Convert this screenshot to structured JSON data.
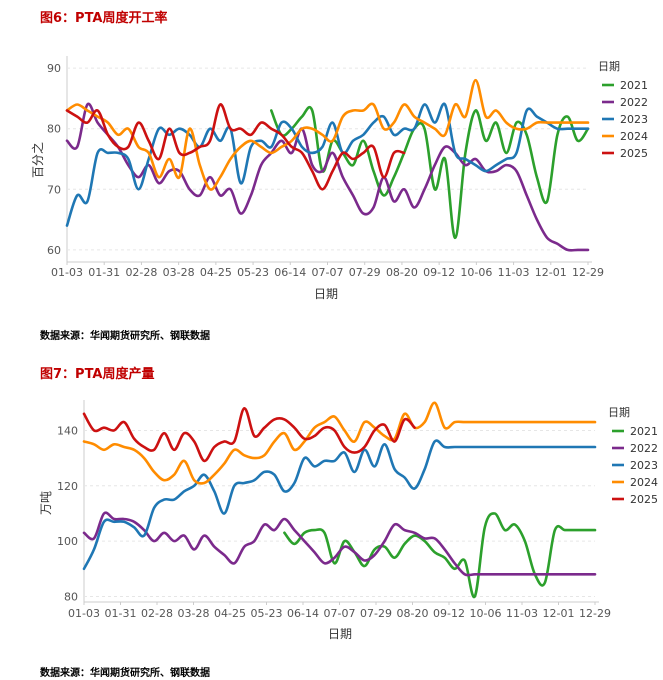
{
  "charts": [
    {
      "figure_title": "图6：PTA周度开工率",
      "source": "数据来源：华闻期货研究所、钢联数据"
    },
    {
      "figure_title": "图7：PTA周度产量",
      "source": "数据来源：华闻期货研究所、钢联数据"
    }
  ],
  "chart_data": [
    {
      "type": "line",
      "title": "图6：PTA周度开工率",
      "xlabel": "日期",
      "ylabel": "百分之",
      "ylim": [
        58,
        92
      ],
      "yticks": [
        60,
        70,
        80,
        90
      ],
      "categories": [
        "01-03",
        "01-31",
        "02-28",
        "03-28",
        "04-25",
        "05-23",
        "06-14",
        "07-07",
        "07-29",
        "08-20",
        "09-12",
        "10-06",
        "11-03",
        "12-01",
        "12-29"
      ],
      "legend_title": "日期",
      "series": [
        {
          "name": "2021",
          "color": "#2ca02c",
          "x": [
            20,
            21,
            22,
            23,
            24,
            25,
            26,
            27,
            28,
            29,
            30,
            31,
            32,
            33,
            34,
            35,
            36,
            37,
            38,
            39,
            40,
            41,
            42,
            43,
            44,
            45,
            46,
            47,
            48,
            49,
            50,
            51
          ],
          "values": [
            83,
            79,
            80,
            82,
            83,
            73,
            78,
            76,
            74,
            78,
            73,
            69,
            72,
            76,
            80,
            80,
            70,
            75,
            62,
            76,
            83,
            78,
            81,
            76,
            81,
            79,
            72,
            68,
            79,
            82,
            78,
            80
          ]
        },
        {
          "name": "2022",
          "color": "#7b2a8c",
          "x": [
            0,
            1,
            2,
            3,
            4,
            5,
            6,
            7,
            8,
            9,
            10,
            11,
            12,
            13,
            14,
            15,
            16,
            17,
            18,
            19,
            20,
            21,
            22,
            23,
            24,
            25,
            26,
            27,
            28,
            29,
            30,
            31,
            32,
            33,
            34,
            35,
            36,
            37,
            38,
            39,
            40,
            41,
            42,
            43,
            44,
            45,
            46,
            47,
            48,
            49,
            50,
            51
          ],
          "values": [
            78,
            77,
            84,
            81,
            79,
            77,
            74,
            72,
            74,
            71,
            73,
            73,
            70,
            69,
            72,
            69,
            70,
            66,
            69,
            74,
            76,
            78,
            76,
            80,
            74,
            73,
            76,
            72,
            69,
            66,
            67,
            72,
            68,
            70,
            67,
            70,
            74,
            77,
            76,
            74,
            75,
            73,
            73,
            74,
            73,
            69,
            65,
            62,
            61,
            60,
            60,
            60
          ]
        },
        {
          "name": "2023",
          "color": "#1f77b4",
          "x": [
            0,
            1,
            2,
            3,
            4,
            5,
            6,
            7,
            8,
            9,
            10,
            11,
            12,
            13,
            14,
            15,
            16,
            17,
            18,
            19,
            20,
            21,
            22,
            23,
            24,
            25,
            26,
            27,
            28,
            29,
            30,
            31,
            32,
            33,
            34,
            35,
            36,
            37,
            38,
            39,
            40,
            41,
            42,
            43,
            44,
            45,
            46,
            47,
            48,
            49,
            50,
            51
          ],
          "values": [
            64,
            69,
            68,
            76,
            76,
            76,
            75,
            70,
            75,
            80,
            79,
            80,
            79,
            77,
            80,
            78,
            80,
            71,
            77,
            78,
            77,
            81,
            80,
            77,
            76,
            77,
            81,
            76,
            78,
            79,
            81,
            82,
            79,
            80,
            80,
            84,
            81,
            84,
            76,
            75,
            74,
            73,
            74,
            75,
            76,
            83,
            82,
            81,
            80,
            80,
            80,
            80
          ]
        },
        {
          "name": "2024",
          "color": "#ff8c00",
          "x": [
            0,
            1,
            2,
            3,
            4,
            5,
            6,
            7,
            8,
            9,
            10,
            11,
            12,
            13,
            14,
            15,
            16,
            17,
            18,
            19,
            20,
            21,
            22,
            23,
            24,
            25,
            26,
            27,
            28,
            29,
            30,
            31,
            32,
            33,
            34,
            35,
            36,
            37,
            38,
            39,
            40,
            41,
            42,
            43,
            44,
            45,
            46,
            47,
            48,
            49,
            50,
            51
          ],
          "values": [
            83,
            84,
            83,
            82,
            81,
            79,
            80,
            77,
            76,
            72,
            75,
            72,
            80,
            74,
            70,
            72,
            75,
            77,
            78,
            77,
            76,
            77,
            78,
            80,
            80,
            79,
            78,
            82,
            83,
            83,
            84,
            80,
            81,
            84,
            82,
            81,
            80,
            79,
            84,
            82,
            88,
            82,
            83,
            81,
            80,
            80,
            81,
            81,
            81,
            81,
            81,
            81
          ]
        },
        {
          "name": "2025",
          "color": "#cc1111",
          "x": [
            0,
            1,
            2,
            3,
            4,
            5,
            6,
            7,
            8,
            9,
            10,
            11,
            12,
            13,
            14,
            15,
            16,
            17,
            18,
            19,
            20,
            21,
            22,
            23,
            24,
            25,
            26,
            27,
            28,
            29,
            30,
            31,
            32,
            33
          ],
          "values": [
            83,
            82,
            81,
            83,
            79,
            77,
            77,
            81,
            78,
            75,
            80,
            76,
            76,
            77,
            78,
            84,
            80,
            80,
            79,
            81,
            80,
            79,
            77,
            76,
            73,
            70,
            73,
            76,
            75,
            76,
            77,
            72,
            76,
            76
          ]
        }
      ]
    },
    {
      "type": "line",
      "title": "图7：PTA周度产量",
      "xlabel": "日期",
      "ylabel": "万吨",
      "ylim": [
        78,
        151
      ],
      "yticks": [
        80,
        100,
        120,
        140
      ],
      "categories": [
        "01-03",
        "01-31",
        "02-28",
        "03-28",
        "04-25",
        "05-23",
        "06-14",
        "07-07",
        "07-29",
        "08-20",
        "09-12",
        "10-06",
        "11-03",
        "12-01",
        "12-29"
      ],
      "legend_title": "日期",
      "series": [
        {
          "name": "2021",
          "color": "#2ca02c",
          "x": [
            20,
            21,
            22,
            23,
            24,
            25,
            26,
            27,
            28,
            29,
            30,
            31,
            32,
            33,
            34,
            35,
            36,
            37,
            38,
            39,
            40,
            41,
            42,
            43,
            44,
            45,
            46,
            47,
            48,
            49,
            50,
            51
          ],
          "values": [
            103,
            99,
            103,
            104,
            103,
            92,
            100,
            96,
            91,
            97,
            98,
            94,
            99,
            102,
            100,
            96,
            94,
            90,
            93,
            80,
            105,
            110,
            104,
            106,
            100,
            88,
            85,
            104,
            104,
            104,
            104,
            104
          ]
        },
        {
          "name": "2022",
          "color": "#7b2a8c",
          "x": [
            0,
            1,
            2,
            3,
            4,
            5,
            6,
            7,
            8,
            9,
            10,
            11,
            12,
            13,
            14,
            15,
            16,
            17,
            18,
            19,
            20,
            21,
            22,
            23,
            24,
            25,
            26,
            27,
            28,
            29,
            30,
            31,
            32,
            33,
            34,
            35,
            36,
            37,
            38,
            39,
            40,
            41,
            42,
            43,
            44,
            45,
            46,
            47,
            48,
            49,
            50,
            51
          ],
          "values": [
            103,
            101,
            110,
            108,
            108,
            107,
            104,
            100,
            103,
            100,
            102,
            97,
            102,
            98,
            95,
            92,
            98,
            100,
            106,
            104,
            108,
            104,
            100,
            96,
            92,
            94,
            98,
            96,
            93,
            95,
            100,
            106,
            104,
            103,
            101,
            101,
            97,
            92,
            88,
            88,
            88,
            88,
            88,
            88,
            88,
            88,
            88,
            88,
            88,
            88,
            88,
            88
          ]
        },
        {
          "name": "2023",
          "color": "#1f77b4",
          "x": [
            0,
            1,
            2,
            3,
            4,
            5,
            6,
            7,
            8,
            9,
            10,
            11,
            12,
            13,
            14,
            15,
            16,
            17,
            18,
            19,
            20,
            21,
            22,
            23,
            24,
            25,
            26,
            27,
            28,
            29,
            30,
            31,
            32,
            33,
            34,
            35,
            36,
            37,
            38,
            39,
            40,
            41,
            42,
            43,
            44,
            45,
            46,
            47,
            48,
            49,
            50,
            51
          ],
          "values": [
            90,
            97,
            107,
            107,
            107,
            105,
            102,
            112,
            115,
            115,
            118,
            120,
            124,
            118,
            110,
            120,
            121,
            122,
            125,
            124,
            118,
            121,
            130,
            127,
            129,
            129,
            132,
            125,
            133,
            127,
            135,
            126,
            123,
            119,
            126,
            136,
            134,
            134,
            134,
            134,
            134,
            134,
            134,
            134,
            134,
            134,
            134,
            134,
            134,
            134,
            134,
            134
          ]
        },
        {
          "name": "2024",
          "color": "#ff8c00",
          "x": [
            0,
            1,
            2,
            3,
            4,
            5,
            6,
            7,
            8,
            9,
            10,
            11,
            12,
            13,
            14,
            15,
            16,
            17,
            18,
            19,
            20,
            21,
            22,
            23,
            24,
            25,
            26,
            27,
            28,
            29,
            30,
            31,
            32,
            33,
            34,
            35,
            36,
            37,
            38,
            39,
            40,
            41,
            42,
            43,
            44,
            45,
            46,
            47,
            48,
            49,
            50,
            51
          ],
          "values": [
            136,
            135,
            133,
            135,
            134,
            133,
            130,
            125,
            122,
            124,
            129,
            122,
            121,
            124,
            128,
            133,
            131,
            130,
            131,
            136,
            139,
            133,
            136,
            141,
            143,
            145,
            140,
            136,
            143,
            141,
            138,
            137,
            146,
            141,
            143,
            150,
            141,
            143,
            143,
            143,
            143,
            143,
            143,
            143,
            143,
            143,
            143,
            143,
            143,
            143,
            143,
            143
          ]
        },
        {
          "name": "2025",
          "color": "#cc1111",
          "x": [
            0,
            1,
            2,
            3,
            4,
            5,
            6,
            7,
            8,
            9,
            10,
            11,
            12,
            13,
            14,
            15,
            16,
            17,
            18,
            19,
            20,
            21,
            22,
            23,
            24,
            25,
            26,
            27,
            28,
            29,
            30,
            31,
            32,
            33
          ],
          "values": [
            146,
            140,
            141,
            140,
            143,
            137,
            134,
            133,
            139,
            133,
            139,
            136,
            129,
            134,
            136,
            136,
            148,
            138,
            141,
            144,
            144,
            141,
            137,
            138,
            141,
            140,
            134,
            132,
            134,
            140,
            142,
            136,
            144,
            141
          ]
        }
      ]
    }
  ]
}
